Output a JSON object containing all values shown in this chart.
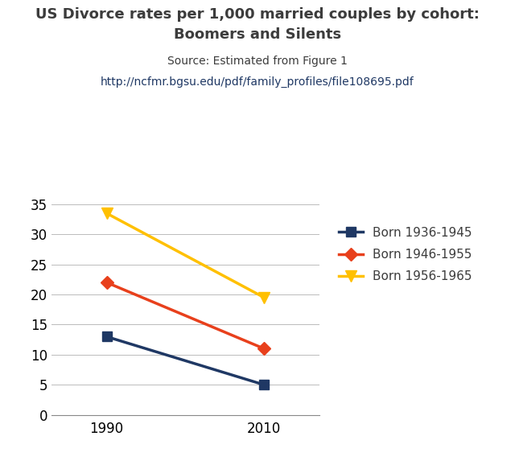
{
  "title_line1": "US Divorce rates per 1,000 married couples by cohort:",
  "title_line2": "Boomers and Silents",
  "source_line1": "Source: Estimated from Figure 1",
  "source_line2": "http://ncfmr.bgsu.edu/pdf/family_profiles/file108695.pdf",
  "x": [
    1990,
    2010
  ],
  "series": [
    {
      "label": "Born 1936-1945",
      "values": [
        13,
        5
      ],
      "color": "#1F3864",
      "marker": "s",
      "marker_size": 8
    },
    {
      "label": "Born 1946-1955",
      "values": [
        22,
        11
      ],
      "color": "#E8401C",
      "marker": "D",
      "marker_size": 8
    },
    {
      "label": "Born 1956-1965",
      "values": [
        33.5,
        19.5
      ],
      "color": "#FFC000",
      "marker": "v",
      "marker_size": 10
    }
  ],
  "ylim": [
    0,
    36
  ],
  "yticks": [
    0,
    5,
    10,
    15,
    20,
    25,
    30,
    35
  ],
  "xticks": [
    1990,
    2010
  ],
  "title_color": "#3C3C3C",
  "source_color": "#3C3C3C",
  "url_color": "#1F3864",
  "background_color": "#FFFFFF",
  "grid_color": "#BBBBBB",
  "linewidth": 2.5,
  "title_fontsize": 13,
  "source_fontsize": 10,
  "legend_fontsize": 11,
  "tick_fontsize": 12
}
